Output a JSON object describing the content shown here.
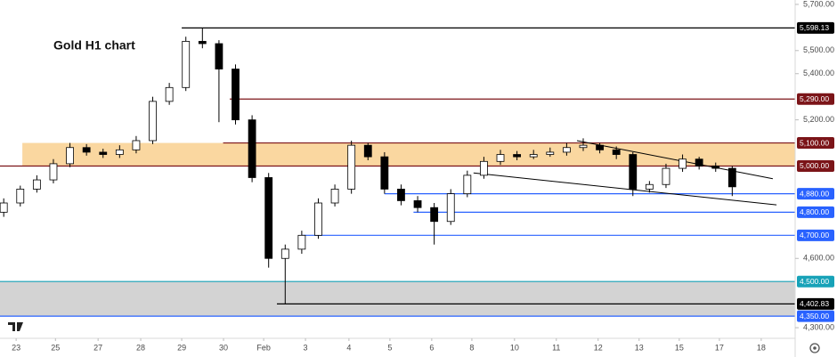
{
  "chart_data": {
    "type": "candlestick",
    "title": "Gold H1 chart",
    "x": [
      -0.3,
      0.1,
      0.5,
      0.9,
      1.3,
      1.7,
      2.1,
      2.5,
      2.9,
      3.3,
      3.7,
      4.1,
      4.5,
      4.9,
      5.3,
      5.7,
      6.1,
      6.5,
      6.9,
      7.3,
      7.7,
      8.1,
      8.5,
      8.9,
      9.3,
      9.7,
      10.1,
      10.5,
      10.9,
      11.3,
      11.7,
      12.1,
      12.5,
      12.9,
      13.3,
      13.7,
      14.1,
      14.5,
      14.9,
      15.3,
      15.7,
      16.1,
      16.5,
      16.9,
      17.3
    ],
    "open": [
      4800,
      4840,
      4900,
      4940,
      5010,
      5080,
      5060,
      5050,
      5070,
      5110,
      5280,
      5340,
      5540,
      5530,
      5420,
      5200,
      4950,
      4600,
      4640,
      4700,
      4840,
      4900,
      5090,
      5040,
      4900,
      4850,
      4820,
      4760,
      4880,
      4960,
      5020,
      5050,
      5040,
      5050,
      5060,
      5080,
      5090,
      5070,
      5050,
      4900,
      4920,
      4990,
      5030,
      5000,
      4990
    ],
    "high": [
      4860,
      4915,
      4960,
      5030,
      5100,
      5095,
      5075,
      5090,
      5130,
      5300,
      5360,
      5560,
      5598,
      5545,
      5440,
      5220,
      4970,
      4660,
      4720,
      4860,
      4920,
      5110,
      5100,
      5060,
      4920,
      4870,
      4840,
      4900,
      4980,
      5040,
      5070,
      5065,
      5070,
      5080,
      5100,
      5120,
      5100,
      5085,
      5060,
      4935,
      5010,
      5050,
      5040,
      5015,
      5000
    ],
    "low": [
      4780,
      4825,
      4885,
      4925,
      4995,
      5045,
      5035,
      5035,
      5055,
      5095,
      5265,
      5325,
      5510,
      5190,
      5180,
      4930,
      4560,
      4403,
      4620,
      4685,
      4825,
      4880,
      5025,
      4880,
      4830,
      4800,
      4660,
      4745,
      4865,
      4945,
      5005,
      5025,
      5030,
      5040,
      5045,
      5065,
      5055,
      5030,
      4870,
      4885,
      4905,
      4975,
      4985,
      4975,
      4870
    ],
    "close": [
      4840,
      4900,
      4940,
      5010,
      5080,
      5060,
      5050,
      5070,
      5110,
      5280,
      5340,
      5540,
      5530,
      5420,
      5200,
      4950,
      4600,
      4640,
      4700,
      4840,
      4900,
      5090,
      5040,
      4900,
      4850,
      4820,
      4760,
      4880,
      4960,
      5020,
      5050,
      5040,
      5050,
      5060,
      5080,
      5090,
      5070,
      5050,
      4900,
      4920,
      4990,
      5030,
      5000,
      4990,
      4910
    ],
    "up_color": "#ffffff",
    "down_color": "#000000",
    "xlim": [
      -0.39,
      18.82
    ],
    "ylim": [
      4254,
      5719
    ],
    "xticks": [
      {
        "value": 0,
        "label": "23"
      },
      {
        "value": 0.95,
        "label": "25"
      },
      {
        "value": 1.98,
        "label": "27"
      },
      {
        "value": 3.01,
        "label": "28"
      },
      {
        "value": 4.0,
        "label": "29"
      },
      {
        "value": 5.01,
        "label": "30"
      },
      {
        "value": 5.98,
        "label": "Feb"
      },
      {
        "value": 6.99,
        "label": "3"
      },
      {
        "value": 8.04,
        "label": "4"
      },
      {
        "value": 9.03,
        "label": "5"
      },
      {
        "value": 10.04,
        "label": "6"
      },
      {
        "value": 11.01,
        "label": "8"
      },
      {
        "value": 12.04,
        "label": "10"
      },
      {
        "value": 13.05,
        "label": "11"
      },
      {
        "value": 14.06,
        "label": "12"
      },
      {
        "value": 15.05,
        "label": "13"
      },
      {
        "value": 16.02,
        "label": "15"
      },
      {
        "value": 16.99,
        "label": "17"
      },
      {
        "value": 18.0,
        "label": "18"
      }
    ],
    "yticks": [
      {
        "value": 5700,
        "label": "5,700.00"
      },
      {
        "value": 5500,
        "label": "5,500.00"
      },
      {
        "value": 5400,
        "label": "5,400.00"
      },
      {
        "value": 5200,
        "label": "5,200.00"
      },
      {
        "value": 4600,
        "label": "4,600.00"
      },
      {
        "value": 4300,
        "label": "4,300.00"
      }
    ],
    "zones": [
      {
        "from": 5000,
        "to": 5100,
        "start": 0.15,
        "color": "#fad7a0"
      },
      {
        "from": 4350,
        "to": 4500,
        "color": "#d3d3d3"
      }
    ],
    "levels": [
      {
        "value": 5598.13,
        "label": "5,598.13",
        "start": 4.0,
        "color": "#000000"
      },
      {
        "value": 5290,
        "label": "5,290.00",
        "start": 5.16,
        "color": "#7b1418"
      },
      {
        "value": 5100,
        "label": "5,100.00",
        "start": 5.0,
        "color": "#7b1418"
      },
      {
        "value": 5000,
        "label": "5,000.00",
        "color": "#7b1418"
      },
      {
        "value": 4880,
        "label": "4,880.00",
        "start": 8.9,
        "color": "#2962ff"
      },
      {
        "value": 4800,
        "label": "4,800.00",
        "start": 9.6,
        "color": "#2962ff"
      },
      {
        "value": 4700,
        "label": "4,700.00",
        "start": 6.9,
        "color": "#2962ff"
      },
      {
        "value": 4500,
        "label": "4,500.00",
        "color": "#17a2b8"
      },
      {
        "value": 4402.83,
        "label": "4,402.83",
        "start": 6.3,
        "color": "#000000"
      },
      {
        "value": 4350,
        "label": "4,350.00",
        "color": "#2962ff"
      }
    ],
    "trendlines": [
      {
        "x": [
          13.55,
          18.28
        ],
        "y": [
          5110,
          4945
        ]
      },
      {
        "x": [
          11.05,
          18.37
        ],
        "y": [
          4970,
          4832
        ]
      }
    ]
  }
}
